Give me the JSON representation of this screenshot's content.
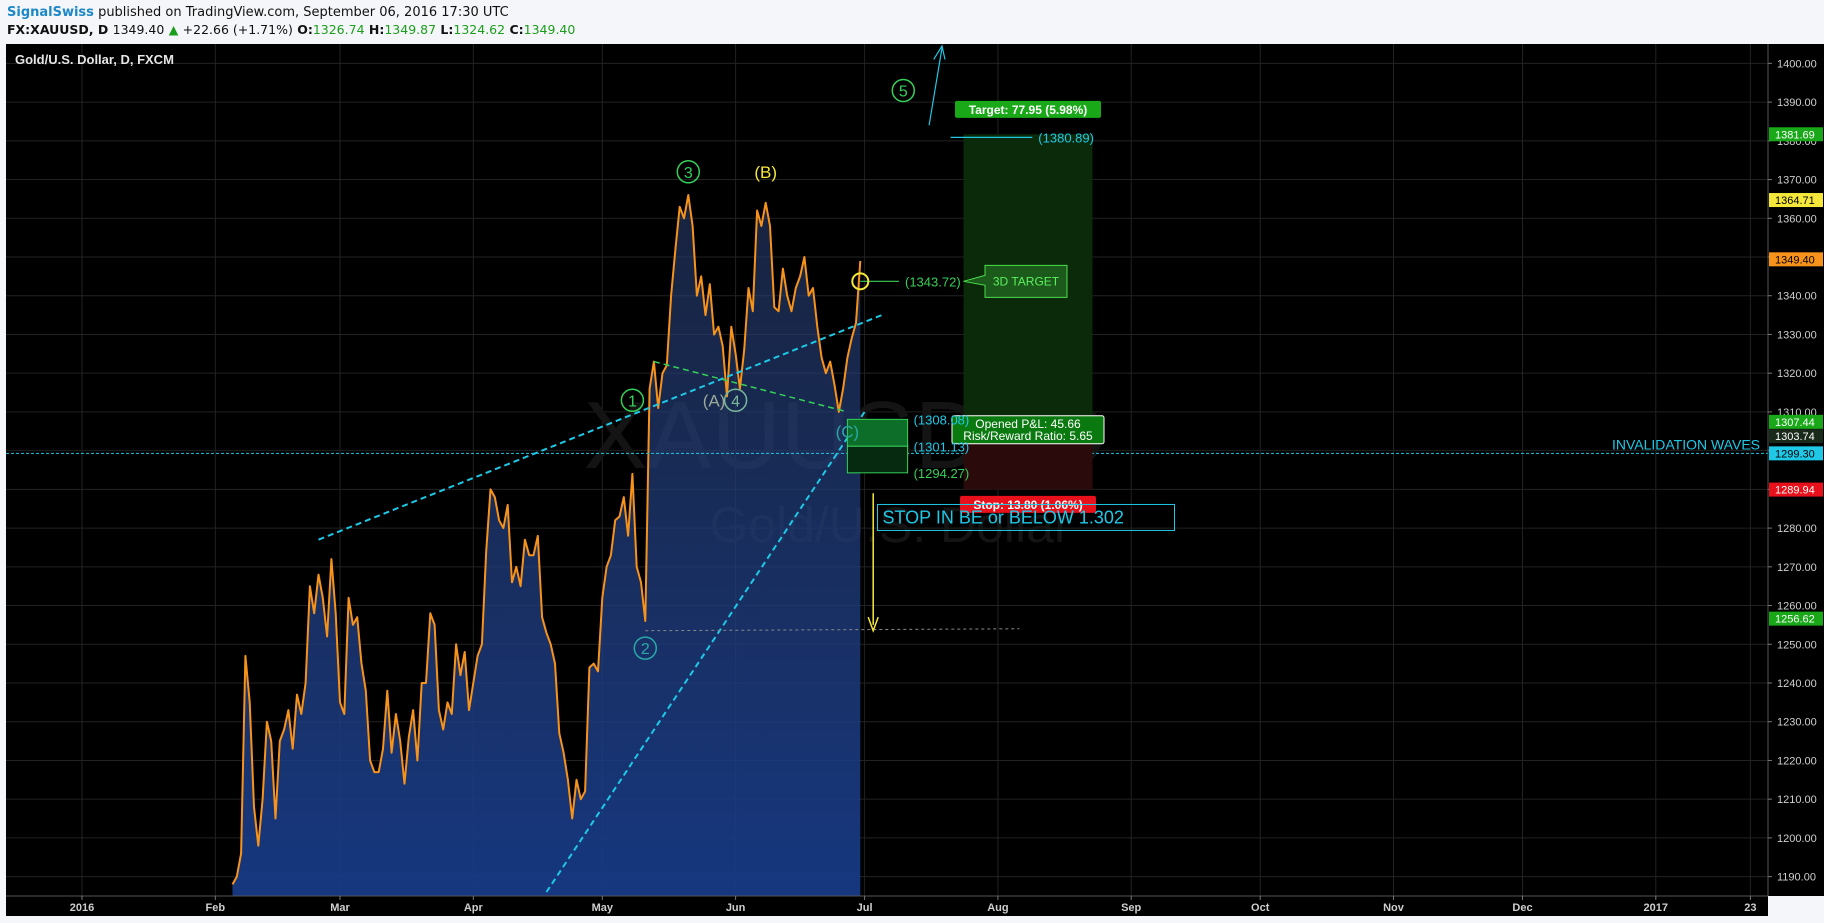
{
  "header": {
    "author": "SignalSwiss",
    "published_text": "published on TradingView.com, September 06, 2016 17:30 UTC",
    "symbol": "FX:XAUUSD, D",
    "last": "1349.40",
    "change_arrow": "▲",
    "change": "+22.66 (+1.71%)",
    "o_label": "O:",
    "o_val": "1326.74",
    "h_label": "H:",
    "h_val": "1349.87",
    "l_label": "L:",
    "l_val": "1324.62",
    "c_label": "C:",
    "c_val": "1349.40"
  },
  "chart_title": "Gold/U.S. Dollar, D, FXCM",
  "watermark": {
    "symbol": "XAUUSD, D",
    "name": "Gold/U.S. Dollar"
  },
  "colors": {
    "price_line": "#f7931a",
    "area_fill": "#1c3a7a",
    "trendline": "#1ec8e6",
    "wave_green": "#34d058",
    "wave_yellow": "#f5e83a",
    "target_green": "#18a818",
    "stop_red": "#e8101a"
  },
  "chart_data": {
    "type": "area",
    "ylim": [
      1185,
      1405
    ],
    "y_ticks": [
      1190,
      1200,
      1210,
      1220,
      1230,
      1240,
      1250,
      1260,
      1270,
      1280,
      1290,
      1300,
      1310,
      1320,
      1330,
      1340,
      1350,
      1360,
      1370,
      1380,
      1390,
      1400
    ],
    "x_ticks": [
      {
        "label": "2016",
        "day": 0
      },
      {
        "label": "Feb",
        "day": 31
      },
      {
        "label": "Mar",
        "day": 60
      },
      {
        "label": "Apr",
        "day": 91
      },
      {
        "label": "May",
        "day": 121
      },
      {
        "label": "Jun",
        "day": 152
      },
      {
        "label": "Jul",
        "day": 182
      },
      {
        "label": "Aug",
        "day": 213
      },
      {
        "label": "Sep",
        "day": 244
      },
      {
        "label": "Oct",
        "day": 274
      },
      {
        "label": "Nov",
        "day": 305
      },
      {
        "label": "Dec",
        "day": 335
      },
      {
        "label": "2017",
        "day": 366
      },
      {
        "label": "23",
        "day": 388
      }
    ],
    "series": [
      {
        "points": [
          [
            35,
            1188
          ],
          [
            36,
            1190
          ],
          [
            37,
            1196
          ],
          [
            38,
            1247
          ],
          [
            39,
            1235
          ],
          [
            40,
            1208
          ],
          [
            41,
            1198
          ],
          [
            42,
            1210
          ],
          [
            43,
            1230
          ],
          [
            44,
            1225
          ],
          [
            45,
            1205
          ],
          [
            46,
            1225
          ],
          [
            47,
            1228
          ],
          [
            48,
            1233
          ],
          [
            49,
            1223
          ],
          [
            50,
            1237
          ],
          [
            51,
            1232
          ],
          [
            52,
            1240
          ],
          [
            53,
            1265
          ],
          [
            54,
            1258
          ],
          [
            55,
            1268
          ],
          [
            56,
            1262
          ],
          [
            57,
            1252
          ],
          [
            58,
            1272
          ],
          [
            59,
            1258
          ],
          [
            60,
            1235
          ],
          [
            61,
            1232
          ],
          [
            62,
            1262
          ],
          [
            63,
            1255
          ],
          [
            64,
            1257
          ],
          [
            65,
            1245
          ],
          [
            66,
            1238
          ],
          [
            67,
            1220
          ],
          [
            68,
            1217
          ],
          [
            69,
            1217
          ],
          [
            70,
            1223
          ],
          [
            71,
            1238
          ],
          [
            72,
            1222
          ],
          [
            73,
            1232
          ],
          [
            74,
            1225
          ],
          [
            75,
            1214
          ],
          [
            76,
            1226
          ],
          [
            77,
            1233
          ],
          [
            78,
            1220
          ],
          [
            79,
            1240
          ],
          [
            80,
            1240
          ],
          [
            81,
            1258
          ],
          [
            82,
            1255
          ],
          [
            83,
            1233
          ],
          [
            84,
            1228
          ],
          [
            85,
            1235
          ],
          [
            86,
            1232
          ],
          [
            87,
            1250
          ],
          [
            88,
            1242
          ],
          [
            89,
            1248
          ],
          [
            90,
            1233
          ],
          [
            91,
            1240
          ],
          [
            92,
            1247
          ],
          [
            93,
            1250
          ],
          [
            94,
            1274
          ],
          [
            95,
            1290
          ],
          [
            96,
            1288
          ],
          [
            97,
            1282
          ],
          [
            98,
            1280
          ],
          [
            99,
            1286
          ],
          [
            100,
            1266
          ],
          [
            101,
            1270
          ],
          [
            102,
            1265
          ],
          [
            103,
            1277
          ],
          [
            104,
            1273
          ],
          [
            105,
            1273
          ],
          [
            106,
            1278
          ],
          [
            107,
            1257
          ],
          [
            108,
            1253
          ],
          [
            109,
            1250
          ],
          [
            110,
            1245
          ],
          [
            111,
            1227
          ],
          [
            112,
            1222
          ],
          [
            113,
            1215
          ],
          [
            114,
            1205
          ],
          [
            115,
            1215
          ],
          [
            116,
            1210
          ],
          [
            117,
            1212
          ],
          [
            118,
            1244
          ],
          [
            119,
            1245
          ],
          [
            120,
            1243
          ],
          [
            121,
            1262
          ],
          [
            122,
            1270
          ],
          [
            123,
            1273
          ],
          [
            124,
            1282
          ],
          [
            125,
            1283
          ],
          [
            126,
            1288
          ],
          [
            127,
            1278
          ],
          [
            128,
            1294
          ],
          [
            129,
            1270
          ],
          [
            130,
            1266
          ],
          [
            131,
            1256
          ],
          [
            132,
            1316
          ],
          [
            133,
            1323
          ],
          [
            134,
            1311
          ],
          [
            135,
            1320
          ],
          [
            136,
            1322
          ],
          [
            137,
            1340
          ],
          [
            138,
            1352
          ],
          [
            139,
            1363
          ],
          [
            140,
            1360
          ],
          [
            141,
            1366
          ],
          [
            142,
            1358
          ],
          [
            143,
            1340
          ],
          [
            144,
            1345
          ],
          [
            145,
            1335
          ],
          [
            146,
            1343
          ],
          [
            147,
            1330
          ],
          [
            148,
            1332
          ],
          [
            149,
            1327
          ],
          [
            150,
            1314
          ],
          [
            151,
            1332
          ],
          [
            152,
            1325
          ],
          [
            153,
            1316
          ],
          [
            154,
            1326
          ],
          [
            155,
            1342
          ],
          [
            156,
            1336
          ],
          [
            157,
            1362
          ],
          [
            158,
            1358
          ],
          [
            159,
            1364
          ],
          [
            160,
            1358
          ],
          [
            161,
            1337
          ],
          [
            162,
            1336
          ],
          [
            163,
            1347
          ],
          [
            164,
            1340
          ],
          [
            165,
            1336
          ],
          [
            166,
            1342
          ],
          [
            167,
            1345
          ],
          [
            168,
            1350
          ],
          [
            169,
            1340
          ],
          [
            170,
            1342
          ],
          [
            171,
            1332
          ],
          [
            172,
            1324
          ],
          [
            173,
            1320
          ],
          [
            174,
            1323
          ],
          [
            175,
            1317
          ],
          [
            176,
            1310
          ],
          [
            177,
            1316
          ],
          [
            178,
            1324
          ],
          [
            179,
            1329
          ],
          [
            180,
            1333
          ],
          [
            181,
            1349
          ]
        ]
      }
    ],
    "invalidation_level": 1299.3,
    "annotations": {
      "waves": [
        {
          "label": "1",
          "day": 128,
          "value": 1313
        },
        {
          "label": "2",
          "day": 131,
          "value": 1249
        },
        {
          "label": "3",
          "day": 141,
          "value": 1372
        },
        {
          "label": "4",
          "day": 152,
          "value": 1313
        },
        {
          "label": "5",
          "day": 191,
          "value": 1393
        },
        {
          "label": "(A)",
          "day": 147,
          "value": 1313
        },
        {
          "label": "(B)",
          "day": 159,
          "value": 1372
        },
        {
          "label": "(C)",
          "day": 178,
          "value": 1305
        }
      ],
      "levels": [
        {
          "label": "(1380.89)",
          "value": 1380.89
        },
        {
          "label": "(1343.72)",
          "value": 1343.72
        },
        {
          "label": "(1308.08)",
          "value": 1308.08
        },
        {
          "label": "(1301.13)",
          "value": 1301.13
        },
        {
          "label": "(1294.27)",
          "value": 1294.27
        }
      ],
      "price_labels": [
        {
          "text": "1381.69",
          "value": 1381.69,
          "kind": "green"
        },
        {
          "text": "1364.71",
          "value": 1364.71,
          "kind": "yellow"
        },
        {
          "text": "1349.40",
          "value": 1349.4,
          "kind": "orange"
        },
        {
          "text": "1307.44",
          "value": 1307.44,
          "kind": "green"
        },
        {
          "text": "1303.74",
          "value": 1303.74,
          "kind": "dark"
        },
        {
          "text": "1299.30",
          "value": 1299.3,
          "kind": "cyan"
        },
        {
          "text": "1289.94",
          "value": 1289.94,
          "kind": "red"
        },
        {
          "text": "1256.62",
          "value": 1256.62,
          "kind": "green"
        }
      ],
      "target_label": "Target: 77.95 (5.98%)",
      "stop_label": "Stop: 13.80 (1.06%)",
      "pnl_label": "Opened P&L: 45.66",
      "rr_label": "Risk/Reward Ratio: 5.65",
      "callout": "3D TARGET",
      "stop_note": "STOP IN BE or BELOW 1.302",
      "invalidation_note": "INVALIDATION WAVES",
      "position": {
        "entry": 1303.74,
        "target": 1381.69,
        "stop": 1289.94
      }
    }
  }
}
